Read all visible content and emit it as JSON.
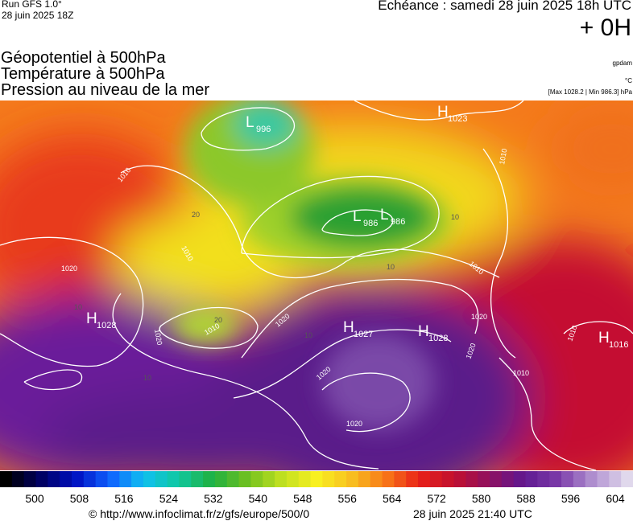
{
  "header": {
    "run": "Run GFS 1.0°",
    "date": "28 juin 2025 18Z",
    "forecast": "Echéance : samedi 28 juin 2025 18h UTC",
    "lead": "+ 0H"
  },
  "legend": {
    "lines": [
      "Géopotentiel à 500hPa",
      "Température à 500hPa",
      "Pression au niveau de la mer"
    ],
    "units": [
      "gpdam",
      "°C",
      "[Max 1028.2 | Min 986.3] hPa"
    ]
  },
  "map": {
    "centers": [
      {
        "type": "L",
        "value": "996"
      },
      {
        "type": "L",
        "value": "986"
      },
      {
        "type": "L",
        "value": "986"
      },
      {
        "type": "H",
        "value": "1023"
      },
      {
        "type": "H",
        "value": "1028"
      },
      {
        "type": "H",
        "value": "1027"
      },
      {
        "type": "H",
        "value": "1028"
      },
      {
        "type": "H",
        "value": "1016"
      }
    ],
    "isobar_labels": [
      "1010",
      "1010",
      "1020",
      "1010",
      "1020",
      "1020",
      "1010",
      "1020",
      "1020",
      "1010",
      "1010",
      "1020",
      "1020",
      "1010"
    ],
    "temperature_labels": [
      "20",
      "20",
      "10",
      "10",
      "10",
      "10",
      "10"
    ]
  },
  "colorbar": {
    "ticks": [
      500,
      508,
      516,
      524,
      532,
      540,
      548,
      556,
      564,
      572,
      580,
      588,
      596,
      604
    ]
  },
  "footer": {
    "url": "© http://www.infoclimat.fr/z/gfs/europe/500/0",
    "timestamp": "28 juin 2025 21:40 UTC"
  }
}
